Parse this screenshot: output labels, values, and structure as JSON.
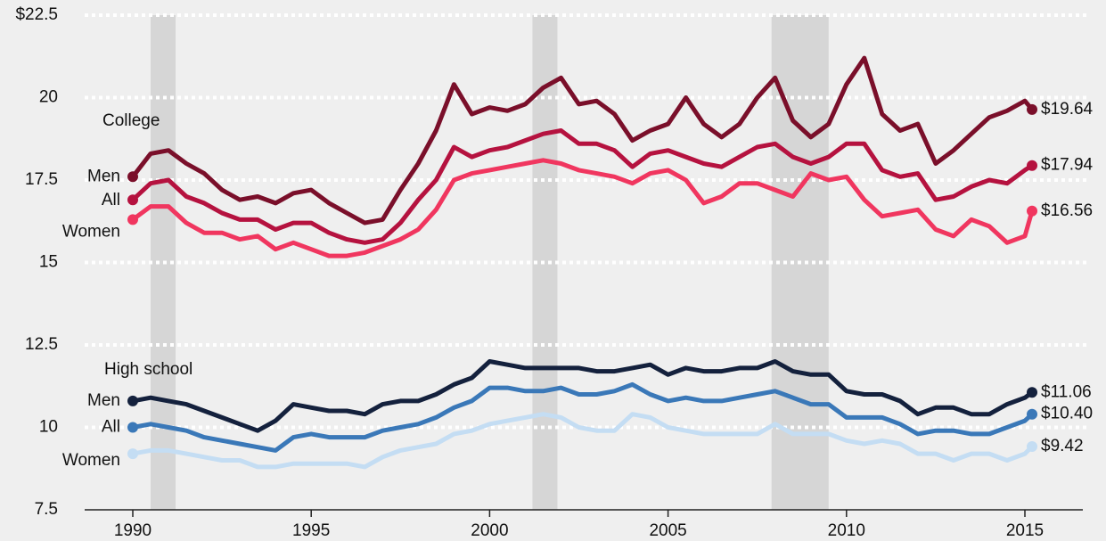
{
  "chart_data": {
    "type": "line",
    "annotations": [
      "College",
      "High school"
    ],
    "x": [
      1990,
      1990.5,
      1991,
      1991.5,
      1992,
      1992.5,
      1993,
      1993.5,
      1994,
      1994.5,
      1995,
      1995.5,
      1996,
      1996.5,
      1997,
      1997.5,
      1998,
      1998.5,
      1999,
      1999.5,
      2000,
      2000.5,
      2001,
      2001.5,
      2002,
      2002.5,
      2003,
      2003.5,
      2004,
      2004.5,
      2005,
      2005.5,
      2006,
      2006.5,
      2007,
      2007.5,
      2008,
      2008.5,
      2009,
      2009.5,
      2010,
      2010.5,
      2011,
      2011.5,
      2012,
      2012.5,
      2013,
      2013.5,
      2014,
      2014.5,
      2015,
      2015.2
    ],
    "series": [
      {
        "name": "Men",
        "color": "#7a0f2a",
        "end_label": "$19.64",
        "values": [
          17.6,
          18.3,
          18.4,
          18.0,
          17.7,
          17.2,
          16.9,
          17.0,
          16.8,
          17.1,
          17.2,
          16.8,
          16.5,
          16.2,
          16.3,
          17.2,
          18.0,
          19.0,
          20.4,
          19.5,
          19.7,
          19.6,
          19.8,
          20.3,
          20.6,
          19.8,
          19.9,
          19.5,
          18.7,
          19.0,
          19.2,
          20.0,
          19.2,
          18.8,
          19.2,
          20.0,
          20.6,
          19.3,
          18.8,
          19.2,
          20.4,
          21.2,
          19.5,
          19.0,
          19.2,
          18.0,
          18.4,
          18.9,
          19.4,
          19.6,
          19.9,
          19.64
        ]
      },
      {
        "name": "All",
        "color": "#b5123f",
        "end_label": "$17.94",
        "values": [
          16.9,
          17.4,
          17.5,
          17.0,
          16.8,
          16.5,
          16.3,
          16.3,
          16.0,
          16.2,
          16.2,
          15.9,
          15.7,
          15.6,
          15.7,
          16.2,
          16.9,
          17.5,
          18.5,
          18.2,
          18.4,
          18.5,
          18.7,
          18.9,
          19.0,
          18.6,
          18.6,
          18.4,
          17.9,
          18.3,
          18.4,
          18.2,
          18.0,
          17.9,
          18.2,
          18.5,
          18.6,
          18.2,
          18.0,
          18.2,
          18.6,
          18.6,
          17.8,
          17.6,
          17.7,
          16.9,
          17.0,
          17.3,
          17.5,
          17.4,
          17.8,
          17.94
        ]
      },
      {
        "name": "Women",
        "color": "#f0365f",
        "end_label": "$16.56",
        "values": [
          16.3,
          16.7,
          16.7,
          16.2,
          15.9,
          15.9,
          15.7,
          15.8,
          15.4,
          15.6,
          15.4,
          15.2,
          15.2,
          15.3,
          15.5,
          15.7,
          16.0,
          16.6,
          17.5,
          17.7,
          17.8,
          17.9,
          18.0,
          18.1,
          18.0,
          17.8,
          17.7,
          17.6,
          17.4,
          17.7,
          17.8,
          17.5,
          16.8,
          17.0,
          17.4,
          17.4,
          17.2,
          17.0,
          17.7,
          17.5,
          17.6,
          16.9,
          16.4,
          16.5,
          16.6,
          16.0,
          15.8,
          16.3,
          16.1,
          15.6,
          15.8,
          16.56
        ]
      },
      {
        "name": "Men",
        "color": "#14213d",
        "end_label": "$11.06",
        "values": [
          10.8,
          10.9,
          10.8,
          10.7,
          10.5,
          10.3,
          10.1,
          9.9,
          10.2,
          10.7,
          10.6,
          10.5,
          10.5,
          10.4,
          10.7,
          10.8,
          10.8,
          11.0,
          11.3,
          11.5,
          12.0,
          11.9,
          11.8,
          11.8,
          11.8,
          11.8,
          11.7,
          11.7,
          11.8,
          11.9,
          11.6,
          11.8,
          11.7,
          11.7,
          11.8,
          11.8,
          12.0,
          11.7,
          11.6,
          11.6,
          11.1,
          11.0,
          11.0,
          10.8,
          10.4,
          10.6,
          10.6,
          10.4,
          10.4,
          10.7,
          10.9,
          11.06
        ]
      },
      {
        "name": "All",
        "color": "#3a78b8",
        "end_label": "$10.40",
        "values": [
          10.0,
          10.1,
          10.0,
          9.9,
          9.7,
          9.6,
          9.5,
          9.4,
          9.3,
          9.7,
          9.8,
          9.7,
          9.7,
          9.7,
          9.9,
          10.0,
          10.1,
          10.3,
          10.6,
          10.8,
          11.2,
          11.2,
          11.1,
          11.1,
          11.2,
          11.0,
          11.0,
          11.1,
          11.3,
          11.0,
          10.8,
          10.9,
          10.8,
          10.8,
          10.9,
          11.0,
          11.1,
          10.9,
          10.7,
          10.7,
          10.3,
          10.3,
          10.3,
          10.1,
          9.8,
          9.9,
          9.9,
          9.8,
          9.8,
          10.0,
          10.2,
          10.4
        ]
      },
      {
        "name": "Women",
        "color": "#c4ddf3",
        "end_label": "$9.42",
        "values": [
          9.2,
          9.3,
          9.3,
          9.2,
          9.1,
          9.0,
          9.0,
          8.8,
          8.8,
          8.9,
          8.9,
          8.9,
          8.9,
          8.8,
          9.1,
          9.3,
          9.4,
          9.5,
          9.8,
          9.9,
          10.1,
          10.2,
          10.3,
          10.4,
          10.3,
          10.0,
          9.9,
          9.9,
          10.4,
          10.3,
          10.0,
          9.9,
          9.8,
          9.8,
          9.8,
          9.8,
          10.1,
          9.8,
          9.8,
          9.8,
          9.6,
          9.5,
          9.6,
          9.5,
          9.2,
          9.2,
          9.0,
          9.2,
          9.2,
          9.0,
          9.2,
          9.42
        ]
      }
    ],
    "recessions": [
      [
        1990.5,
        1991.2
      ],
      [
        2001.2,
        2001.9
      ],
      [
        2007.9,
        2009.5
      ]
    ],
    "xlim": [
      1986.4,
      2016.6
    ],
    "xticks": [
      1990,
      1995,
      2000,
      2005,
      2010,
      2015
    ],
    "ylim": [
      7.5,
      22.5
    ],
    "yticks": [
      {
        "value": 7.5,
        "label": "7.5"
      },
      10,
      {
        "value": 12.5,
        "label": "12.5"
      },
      15,
      {
        "value": 17.5,
        "label": "17.5"
      },
      20,
      {
        "value": 22.5,
        "label": "$22.5"
      }
    ],
    "grid": true
  }
}
